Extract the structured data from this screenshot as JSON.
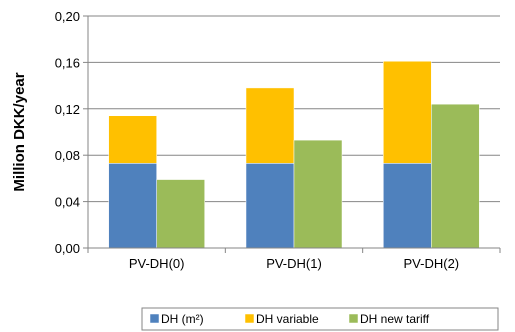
{
  "chart_data": {
    "type": "bar",
    "stacked_group": [
      "DH (m²)",
      "DH variable"
    ],
    "categories": [
      "PV-DH(0)",
      "PV-DH(1)",
      "PV-DH(2)"
    ],
    "series": [
      {
        "name": "DH (m²)",
        "values": [
          0.073,
          0.073,
          0.073
        ],
        "color": "#4F81BD",
        "stack": "DH"
      },
      {
        "name": "DH variable",
        "values": [
          0.041,
          0.065,
          0.088
        ],
        "color": "#FFC000",
        "stack": "DH"
      },
      {
        "name": "DH new tariff",
        "values": [
          0.059,
          0.093,
          0.124
        ],
        "color": "#9BBB59",
        "stack": "new"
      }
    ],
    "title": "",
    "xlabel": "",
    "ylabel": "Million DKK/year",
    "ylim": [
      0,
      0.2
    ],
    "yticks": [
      0,
      0.04,
      0.08,
      0.12,
      0.16,
      0.2
    ],
    "ytick_labels": [
      "0,00",
      "0,04",
      "0,08",
      "0,12",
      "0,16",
      "0,20"
    ],
    "grid": true,
    "legend_position": "bottom"
  }
}
